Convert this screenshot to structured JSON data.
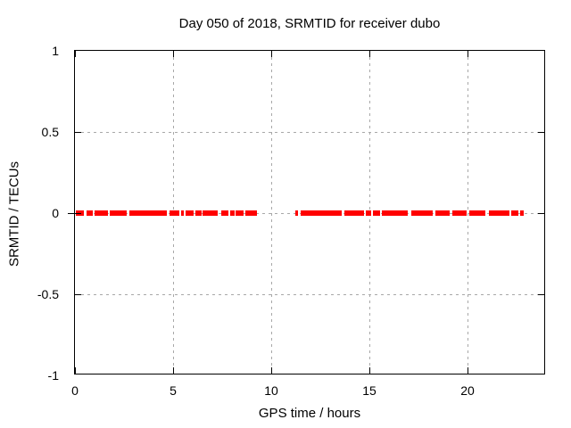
{
  "chart_data": {
    "type": "scatter",
    "title": "Day 050 of 2018, SRMTID for receiver dubo",
    "xlabel": "GPS time / hours",
    "ylabel": "SRMTID / TECUs",
    "xlim": [
      0,
      24
    ],
    "ylim": [
      -1,
      1
    ],
    "xticks": [
      {
        "v": 0,
        "label": "0"
      },
      {
        "v": 5,
        "label": "5"
      },
      {
        "v": 10,
        "label": "10"
      },
      {
        "v": 15,
        "label": "15"
      },
      {
        "v": 20,
        "label": "20"
      }
    ],
    "yticks": [
      {
        "v": 1,
        "label": "1"
      },
      {
        "v": 0.5,
        "label": "0.5"
      },
      {
        "v": 0,
        "label": "0"
      },
      {
        "v": -0.5,
        "label": "-0.5"
      },
      {
        "v": -1,
        "label": "-1"
      }
    ],
    "grid": true,
    "legend": "none",
    "series": [
      {
        "name": "SRMTID",
        "marker": "filled-square",
        "color": "#ff0000",
        "y_value": 0,
        "x_segments_hours": [
          [
            0.05,
            0.45
          ],
          [
            0.57,
            0.9
          ],
          [
            1.02,
            1.7
          ],
          [
            1.79,
            2.64
          ],
          [
            2.77,
            4.7
          ],
          [
            4.8,
            5.32
          ],
          [
            5.4,
            5.55
          ],
          [
            5.65,
            6.05
          ],
          [
            6.15,
            6.45
          ],
          [
            6.52,
            7.29
          ],
          [
            7.44,
            7.82
          ],
          [
            7.92,
            8.12
          ],
          [
            8.2,
            8.58
          ],
          [
            8.68,
            9.27
          ],
          [
            11.23,
            11.38
          ],
          [
            11.5,
            13.58
          ],
          [
            13.73,
            14.71
          ],
          [
            14.82,
            15.09
          ],
          [
            15.2,
            15.55
          ],
          [
            15.62,
            16.95
          ],
          [
            17.14,
            18.24
          ],
          [
            18.35,
            19.11
          ],
          [
            19.23,
            19.94
          ],
          [
            20.09,
            20.89
          ],
          [
            21.11,
            22.14
          ],
          [
            22.24,
            22.59
          ],
          [
            22.7,
            22.85
          ]
        ]
      }
    ],
    "data_gap_hours": [
      9.27,
      11.23
    ],
    "colors": {
      "points": "#ff0000",
      "grid": "#a8a8a8",
      "border": "#000000",
      "text": "#000000",
      "background": "#ffffff"
    }
  }
}
